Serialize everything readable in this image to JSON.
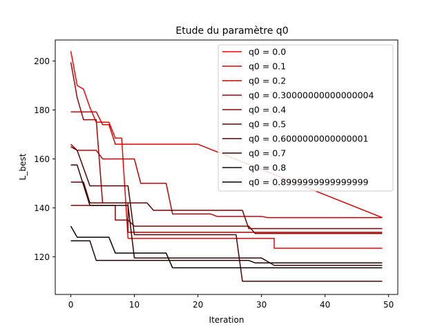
{
  "chart_data": {
    "type": "line",
    "title": "Etude du paramètre q0",
    "xlabel": "Iteration",
    "ylabel": "L_best",
    "xlim": [
      -2.45,
      51.45
    ],
    "ylim": [
      104.6,
      208.6
    ],
    "xticks": [
      0,
      10,
      20,
      30,
      40,
      50
    ],
    "yticks": [
      120,
      140,
      160,
      180,
      200
    ],
    "grid": false,
    "legend_position": "top-right",
    "series": [
      {
        "name": "q0 = 0.0",
        "color": "#ff0000",
        "points": [
          [
            0,
            204
          ],
          [
            1,
            190
          ],
          [
            2,
            188.5
          ],
          [
            3,
            181
          ],
          [
            4,
            175
          ],
          [
            5,
            175
          ],
          [
            6,
            175
          ],
          [
            7,
            168.5
          ],
          [
            8,
            168.5
          ],
          [
            9,
            127.5
          ],
          [
            32,
            127.5
          ],
          [
            32,
            123.5
          ],
          [
            49,
            123.5
          ]
        ]
      },
      {
        "name": "q0 = 0.1",
        "color": "#e30000",
        "points": [
          [
            0,
            179.2
          ],
          [
            4,
            179.2
          ],
          [
            5,
            174
          ],
          [
            6,
            174
          ],
          [
            7,
            166
          ],
          [
            20,
            166
          ],
          [
            49,
            136
          ]
        ]
      },
      {
        "name": "q0 = 0.2",
        "color": "#c60000",
        "points": [
          [
            0,
            166
          ],
          [
            1,
            163.5
          ],
          [
            4,
            163.5
          ],
          [
            5,
            160
          ],
          [
            10,
            160
          ],
          [
            11,
            150
          ],
          [
            15,
            150
          ],
          [
            16,
            137.5
          ],
          [
            22,
            137.5
          ],
          [
            23,
            136.5
          ],
          [
            30,
            136.5
          ],
          [
            31,
            136
          ],
          [
            49,
            136
          ]
        ]
      },
      {
        "name": "q0 = 0.30000000000000004",
        "color": "#aa0000",
        "points": [
          [
            0,
            199.5
          ],
          [
            1,
            185
          ],
          [
            2,
            176
          ],
          [
            4,
            176
          ],
          [
            5,
            142
          ],
          [
            9,
            142
          ],
          [
            9,
            130
          ],
          [
            49,
            130
          ]
        ]
      },
      {
        "name": "q0 = 0.4",
        "color": "#8e0000",
        "points": [
          [
            0,
            141
          ],
          [
            7,
            141
          ],
          [
            7,
            135
          ],
          [
            9,
            135
          ],
          [
            10,
            132.5
          ],
          [
            28,
            132.5
          ],
          [
            29,
            129.5
          ],
          [
            49,
            129.5
          ]
        ]
      },
      {
        "name": "q0 = 0.5",
        "color": "#710000",
        "points": [
          [
            0,
            150.5
          ],
          [
            2,
            150.5
          ],
          [
            3,
            142
          ],
          [
            12,
            142
          ],
          [
            13,
            139
          ],
          [
            27,
            139
          ],
          [
            28,
            131.5
          ],
          [
            49,
            131.5
          ]
        ]
      },
      {
        "name": "q0 = 0.6000000000000001",
        "color": "#550000",
        "points": [
          [
            0,
            165
          ],
          [
            1,
            163.5
          ],
          [
            3,
            149
          ],
          [
            9,
            149
          ],
          [
            10,
            129
          ],
          [
            26,
            129
          ],
          [
            27,
            110
          ],
          [
            49,
            110
          ]
        ]
      },
      {
        "name": "q0 = 0.7",
        "color": "#390000",
        "points": [
          [
            0,
            157.5
          ],
          [
            1,
            157.5
          ],
          [
            3,
            141
          ],
          [
            9,
            141
          ],
          [
            10,
            119.5
          ],
          [
            30,
            119.5
          ],
          [
            32,
            116.5
          ],
          [
            49,
            116.5
          ]
        ]
      },
      {
        "name": "q0 = 0.8",
        "color": "#1c0000",
        "points": [
          [
            0,
            126.5
          ],
          [
            3,
            126.5
          ],
          [
            4,
            118.5
          ],
          [
            28,
            118.5
          ],
          [
            29,
            117.5
          ],
          [
            49,
            117.5
          ]
        ]
      },
      {
        "name": "q0 = 0.8999999999999999",
        "color": "#000000",
        "points": [
          [
            0,
            132.5
          ],
          [
            1,
            128
          ],
          [
            6,
            128
          ],
          [
            7,
            121.5
          ],
          [
            15,
            121.5
          ],
          [
            16,
            115.5
          ],
          [
            49,
            115.5
          ]
        ]
      }
    ]
  }
}
